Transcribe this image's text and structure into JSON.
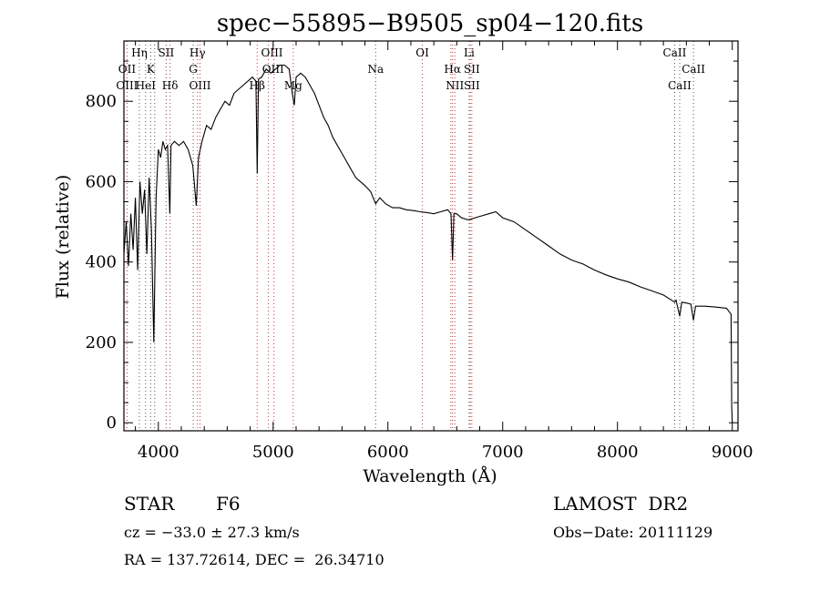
{
  "chart_data": {
    "type": "line",
    "title": "spec−55895−B9505_sp04−120.fits",
    "xlabel": "Wavelength (Å)",
    "ylabel": "Flux (relative)",
    "xlim": [
      3700,
      9050
    ],
    "ylim": [
      -20,
      950
    ],
    "x_ticks": [
      "4000",
      "5000",
      "6000",
      "7000",
      "8000",
      "9000"
    ],
    "y_ticks": [
      "0",
      "200",
      "400",
      "600",
      "800"
    ],
    "grid": false,
    "series": [
      {
        "points": [
          [
            3700,
            420
          ],
          [
            3720,
            500
          ],
          [
            3740,
            390
          ],
          [
            3760,
            520
          ],
          [
            3780,
            430
          ],
          [
            3800,
            560
          ],
          [
            3820,
            380
          ],
          [
            3840,
            600
          ],
          [
            3860,
            520
          ],
          [
            3880,
            580
          ],
          [
            3900,
            420
          ],
          [
            3920,
            610
          ],
          [
            3940,
            480
          ],
          [
            3960,
            200
          ],
          [
            3980,
            560
          ],
          [
            4000,
            680
          ],
          [
            4020,
            660
          ],
          [
            4040,
            700
          ],
          [
            4060,
            680
          ],
          [
            4080,
            690
          ],
          [
            4100,
            520
          ],
          [
            4110,
            690
          ],
          [
            4140,
            700
          ],
          [
            4180,
            690
          ],
          [
            4220,
            700
          ],
          [
            4260,
            680
          ],
          [
            4300,
            640
          ],
          [
            4330,
            540
          ],
          [
            4350,
            660
          ],
          [
            4380,
            700
          ],
          [
            4420,
            740
          ],
          [
            4460,
            730
          ],
          [
            4500,
            760
          ],
          [
            4540,
            780
          ],
          [
            4580,
            800
          ],
          [
            4620,
            790
          ],
          [
            4660,
            820
          ],
          [
            4700,
            830
          ],
          [
            4740,
            840
          ],
          [
            4780,
            850
          ],
          [
            4820,
            860
          ],
          [
            4850,
            850
          ],
          [
            4861,
            620
          ],
          [
            4872,
            855
          ],
          [
            4900,
            860
          ],
          [
            4940,
            880
          ],
          [
            4980,
            870
          ],
          [
            5020,
            880
          ],
          [
            5060,
            890
          ],
          [
            5100,
            890
          ],
          [
            5140,
            880
          ],
          [
            5167,
            820
          ],
          [
            5184,
            790
          ],
          [
            5200,
            860
          ],
          [
            5240,
            870
          ],
          [
            5280,
            860
          ],
          [
            5320,
            840
          ],
          [
            5360,
            820
          ],
          [
            5400,
            790
          ],
          [
            5440,
            760
          ],
          [
            5480,
            740
          ],
          [
            5520,
            710
          ],
          [
            5560,
            690
          ],
          [
            5600,
            670
          ],
          [
            5640,
            650
          ],
          [
            5680,
            630
          ],
          [
            5720,
            610
          ],
          [
            5760,
            600
          ],
          [
            5800,
            590
          ],
          [
            5850,
            575
          ],
          [
            5893,
            545
          ],
          [
            5930,
            560
          ],
          [
            5980,
            545
          ],
          [
            6040,
            535
          ],
          [
            6100,
            535
          ],
          [
            6160,
            530
          ],
          [
            6220,
            528
          ],
          [
            6280,
            525
          ],
          [
            6340,
            523
          ],
          [
            6400,
            520
          ],
          [
            6460,
            525
          ],
          [
            6520,
            530
          ],
          [
            6550,
            520
          ],
          [
            6563,
            405
          ],
          [
            6575,
            520
          ],
          [
            6600,
            520
          ],
          [
            6640,
            510
          ],
          [
            6700,
            505
          ],
          [
            6760,
            510
          ],
          [
            6820,
            515
          ],
          [
            6880,
            520
          ],
          [
            6940,
            525
          ],
          [
            7000,
            510
          ],
          [
            7100,
            500
          ],
          [
            7200,
            480
          ],
          [
            7300,
            460
          ],
          [
            7400,
            440
          ],
          [
            7500,
            420
          ],
          [
            7600,
            405
          ],
          [
            7700,
            395
          ],
          [
            7800,
            380
          ],
          [
            7900,
            368
          ],
          [
            8000,
            358
          ],
          [
            8100,
            350
          ],
          [
            8200,
            338
          ],
          [
            8300,
            328
          ],
          [
            8400,
            318
          ],
          [
            8498,
            300
          ],
          [
            8510,
            305
          ],
          [
            8542,
            265
          ],
          [
            8560,
            300
          ],
          [
            8600,
            298
          ],
          [
            8640,
            295
          ],
          [
            8662,
            255
          ],
          [
            8680,
            290
          ],
          [
            8760,
            290
          ],
          [
            8850,
            288
          ],
          [
            8950,
            285
          ],
          [
            8990,
            270
          ],
          [
            8995,
            40
          ],
          [
            9000,
            0
          ]
        ]
      }
    ],
    "lines_red": [
      {
        "name": "OII",
        "x": 3727
      },
      {
        "name": "Hd",
        "x": 4102
      },
      {
        "name": "Hg",
        "x": 4341
      },
      {
        "name": "OIII",
        "x": 4363
      },
      {
        "name": "Hb",
        "x": 4861
      },
      {
        "name": "OIII_a",
        "x": 4959
      },
      {
        "name": "OIII_b",
        "x": 5007
      },
      {
        "name": "Mg",
        "x": 5175
      },
      {
        "name": "OI",
        "x": 6300
      },
      {
        "name": "NII_a",
        "x": 6548
      },
      {
        "name": "Ha",
        "x": 6563
      },
      {
        "name": "NII_b",
        "x": 6583
      },
      {
        "name": "SII_a",
        "x": 6717
      },
      {
        "name": "SII_b",
        "x": 6731
      }
    ],
    "lines_black": [
      {
        "name": "Heta",
        "x": 3835
      },
      {
        "name": "HeI",
        "x": 3889
      },
      {
        "name": "K",
        "x": 3933
      },
      {
        "name": "H",
        "x": 3968
      },
      {
        "name": "SII_4068",
        "x": 4068
      },
      {
        "name": "G",
        "x": 4304
      },
      {
        "name": "Na",
        "x": 5893
      },
      {
        "name": "Li",
        "x": 6708
      },
      {
        "name": "CaII_a",
        "x": 8498
      },
      {
        "name": "CaII_b",
        "x": 8542
      },
      {
        "name": "CaII_c",
        "x": 8662
      }
    ],
    "line_labels": [
      {
        "text": "Hη",
        "x": 3835,
        "row": 1
      },
      {
        "text": "SII",
        "x": 4068,
        "row": 1
      },
      {
        "text": "Hγ",
        "x": 4341,
        "row": 1
      },
      {
        "text": "OIII",
        "x": 4990,
        "row": 1
      },
      {
        "text": "OI",
        "x": 6300,
        "row": 1
      },
      {
        "text": "Li",
        "x": 6708,
        "row": 1
      },
      {
        "text": "CaII",
        "x": 8498,
        "row": 1
      },
      {
        "text": "OII",
        "x": 3727,
        "row": 2
      },
      {
        "text": "K",
        "x": 3933,
        "row": 2
      },
      {
        "text": "G",
        "x": 4304,
        "row": 2
      },
      {
        "text": "Na",
        "x": 5893,
        "row": 2
      },
      {
        "text": "Hα",
        "x": 6563,
        "row": 2
      },
      {
        "text": "SII",
        "x": 6731,
        "row": 2
      },
      {
        "text": "CaII",
        "x": 8662,
        "row": 2
      },
      {
        "text": "OIII",
        "x": 5000,
        "row": 2
      },
      {
        "text": "OIII",
        "x": 3727,
        "row": 3
      },
      {
        "text": "HeI",
        "x": 3889,
        "row": 3
      },
      {
        "text": "Hδ",
        "x": 4102,
        "row": 3
      },
      {
        "text": "OIII",
        "x": 4363,
        "row": 3
      },
      {
        "text": "Mg",
        "x": 5175,
        "row": 3
      },
      {
        "text": "NII",
        "x": 6583,
        "row": 3
      },
      {
        "text": "SII",
        "x": 6731,
        "row": 3
      },
      {
        "text": "CaII",
        "x": 8542,
        "row": 3
      },
      {
        "text": "Hβ",
        "x": 4861,
        "row": 3
      }
    ],
    "colors": {
      "spectrum": "#000000",
      "line_red": "#cc3333",
      "line_black": "#555555"
    }
  },
  "footer": {
    "object_class": "STAR",
    "subclass": "F6",
    "survey": "LAMOST  DR2",
    "cz": "cz = −33.0 ± 27.3 km/s",
    "obs_date": "Obs−Date: 20111129",
    "radec": "RA = 137.72614, DEC =  26.34710"
  }
}
